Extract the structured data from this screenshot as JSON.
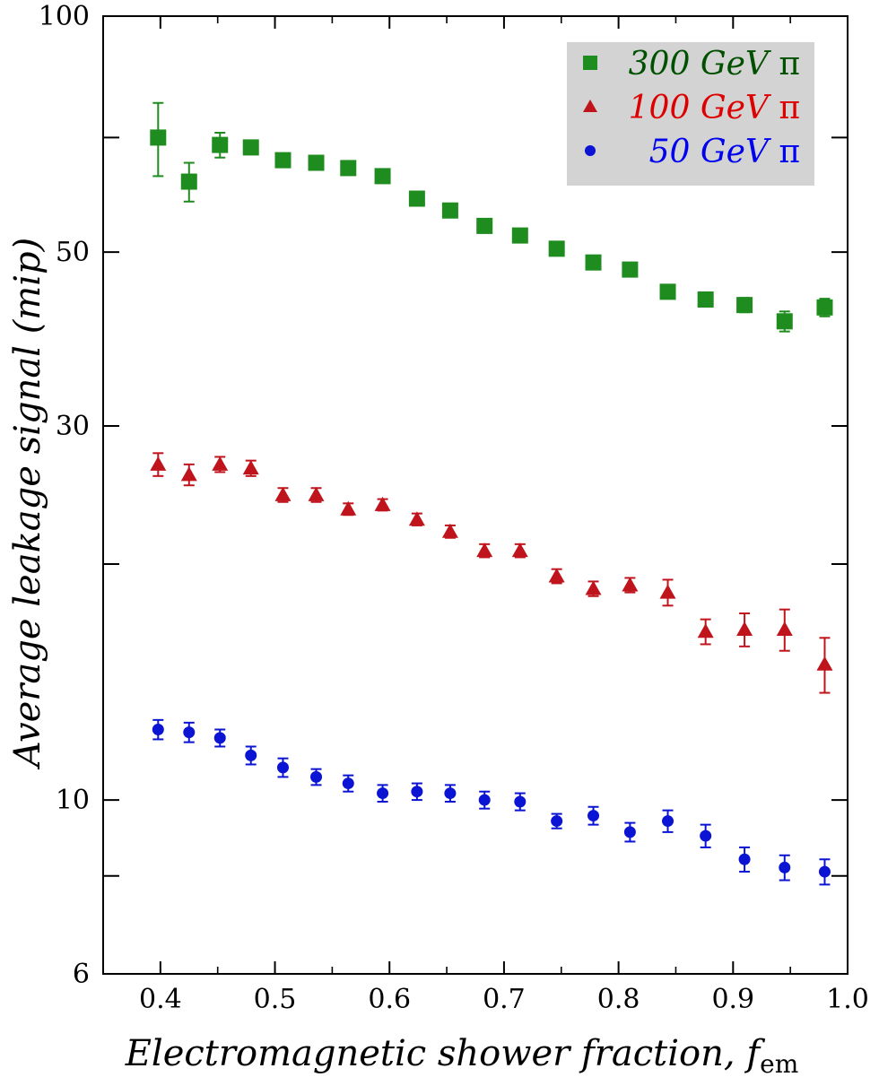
{
  "chart_data": {
    "type": "scatter",
    "xlabel": "Electromagnetic shower fraction, ",
    "xlabel_symbol": "f",
    "xlabel_subscript": "em",
    "ylabel": "Average leakage signal (mip)",
    "xlim": [
      0.35,
      1.0
    ],
    "ylim": [
      6,
      100
    ],
    "yscale": "log",
    "x_ticks": [
      "0.4",
      "0.5",
      "0.6",
      "0.7",
      "0.8",
      "0.9",
      "1.0"
    ],
    "y_ticks": [
      "6",
      "10",
      "30",
      "50",
      "100"
    ],
    "grid": false,
    "legend_position": "top-right",
    "series": [
      {
        "name": "300 GeV",
        "symbol": "π",
        "marker": "square",
        "color": "#1e8c1e",
        "text_color": "#005000",
        "x": [
          0.398,
          0.425,
          0.452,
          0.479,
          0.507,
          0.536,
          0.564,
          0.594,
          0.624,
          0.653,
          0.683,
          0.714,
          0.746,
          0.778,
          0.81,
          0.843,
          0.876,
          0.91,
          0.945,
          0.98
        ],
        "y": [
          70.0,
          61.5,
          68.5,
          68.0,
          65.5,
          65.0,
          64.0,
          62.5,
          58.5,
          56.5,
          54.0,
          52.5,
          50.5,
          48.5,
          47.5,
          44.5,
          43.5,
          42.8,
          40.8,
          42.5
        ],
        "err": [
          7.5,
          3.5,
          2.5,
          1.3,
          0.8,
          0.8,
          0.8,
          0.8,
          0.8,
          0.8,
          0.7,
          0.7,
          0.7,
          0.7,
          0.7,
          0.7,
          0.7,
          0.9,
          1.2,
          1.1
        ]
      },
      {
        "name": "100 GeV",
        "symbol": "π",
        "marker": "triangle",
        "color": "#c0141c",
        "text_color": "#dd0000",
        "x": [
          0.398,
          0.425,
          0.452,
          0.479,
          0.507,
          0.536,
          0.564,
          0.594,
          0.624,
          0.653,
          0.683,
          0.714,
          0.746,
          0.778,
          0.81,
          0.843,
          0.876,
          0.91,
          0.945,
          0.98
        ],
        "y": [
          26.8,
          26.0,
          26.8,
          26.5,
          24.5,
          24.5,
          23.5,
          23.8,
          22.8,
          22.0,
          20.8,
          20.8,
          19.3,
          18.6,
          18.8,
          18.4,
          16.4,
          16.5,
          16.5,
          14.9
        ],
        "err": [
          0.9,
          0.8,
          0.6,
          0.6,
          0.5,
          0.5,
          0.4,
          0.4,
          0.4,
          0.4,
          0.4,
          0.4,
          0.4,
          0.4,
          0.4,
          0.7,
          0.6,
          0.8,
          1.0,
          1.2
        ]
      },
      {
        "name": "50 GeV",
        "symbol": "π",
        "marker": "circle",
        "color": "#0a14d2",
        "text_color": "#0000ee",
        "x": [
          0.398,
          0.425,
          0.452,
          0.479,
          0.507,
          0.536,
          0.564,
          0.594,
          0.624,
          0.653,
          0.683,
          0.714,
          0.746,
          0.778,
          0.81,
          0.843,
          0.876,
          0.91,
          0.945,
          0.98
        ],
        "y": [
          12.3,
          12.2,
          12.0,
          11.4,
          11.0,
          10.7,
          10.5,
          10.2,
          10.25,
          10.2,
          10.0,
          9.95,
          9.4,
          9.55,
          9.1,
          9.4,
          9.0,
          8.4,
          8.2,
          8.1
        ],
        "err": [
          0.35,
          0.35,
          0.3,
          0.3,
          0.3,
          0.25,
          0.25,
          0.25,
          0.25,
          0.25,
          0.25,
          0.25,
          0.2,
          0.25,
          0.25,
          0.3,
          0.3,
          0.3,
          0.3,
          0.3
        ]
      }
    ]
  }
}
